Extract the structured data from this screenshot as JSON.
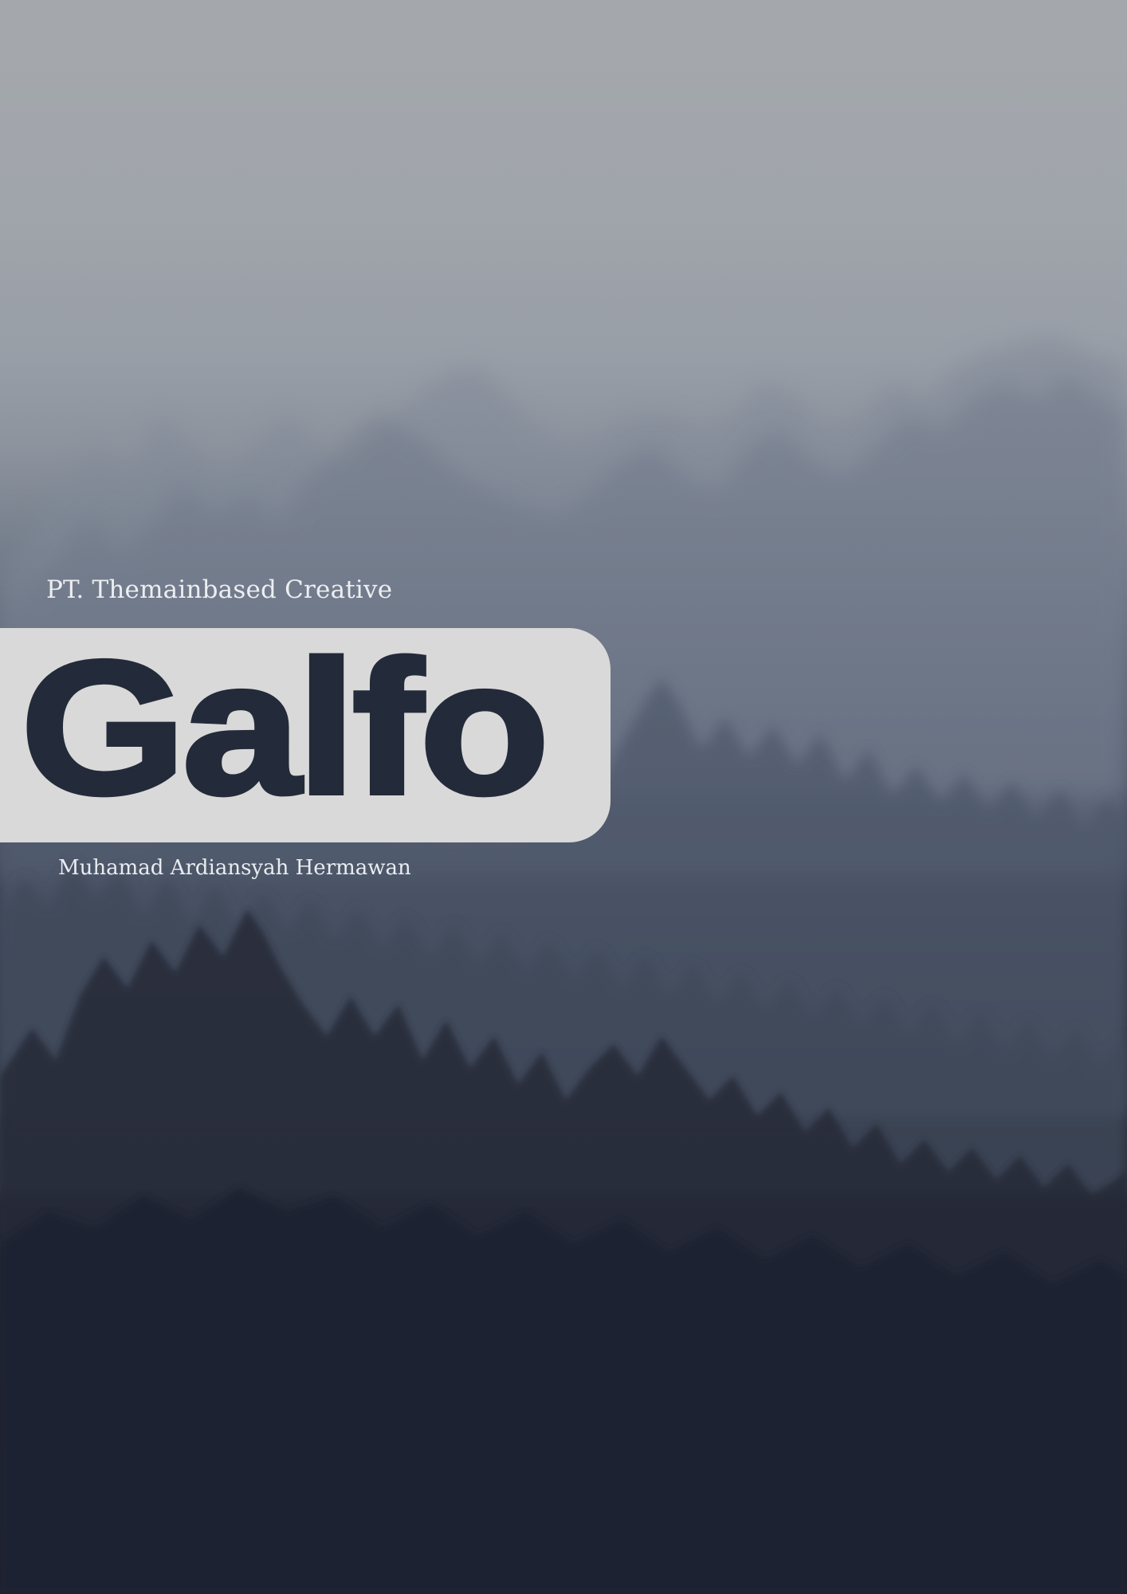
{
  "cover": {
    "company": "PT. Themainbased Creative",
    "title": "Galfo",
    "author": "Muhamad Ardiansyah Hermawan"
  },
  "colors": {
    "title_panel": "#d9d9d9",
    "title_text": "#232a39",
    "caption_text": "#eceef2",
    "sky_top": "#a4a8ad",
    "forest_bottom": "#1b1e28"
  }
}
